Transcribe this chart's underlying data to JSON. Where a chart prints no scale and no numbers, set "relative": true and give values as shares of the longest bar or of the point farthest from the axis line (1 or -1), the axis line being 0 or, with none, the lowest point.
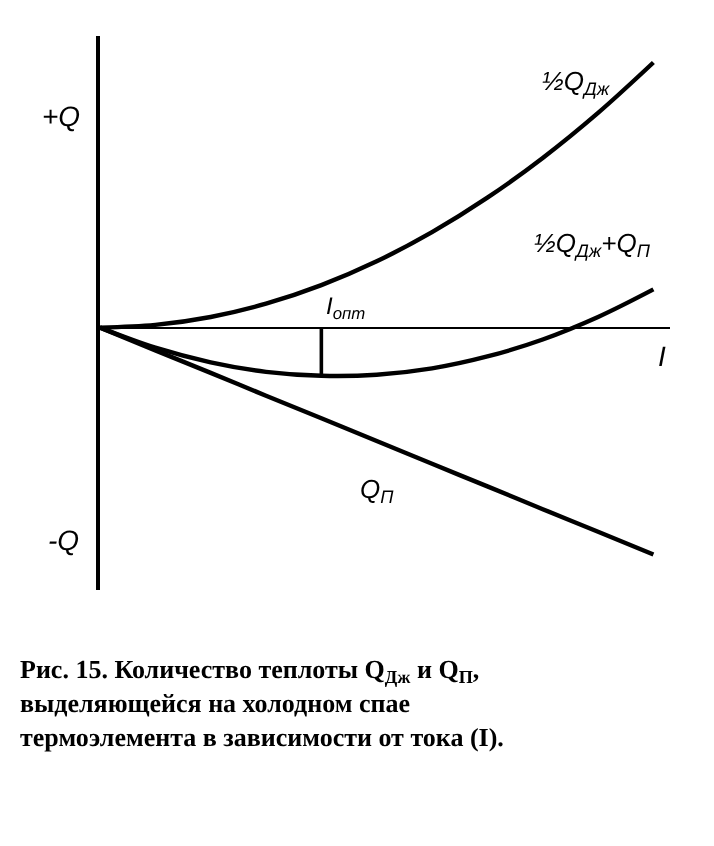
{
  "chart_data": {
    "type": "line",
    "relative": true,
    "xlabel": "I",
    "categories": [
      null,
      null,
      null,
      null,
      null,
      null,
      null,
      null,
      null,
      null,
      null
    ],
    "series": [
      {
        "name": "½Q$_{Дж}$",
        "color": "#000000",
        "values": [
          0,
          0.01,
          0.04,
          0.09,
          0.16,
          0.25,
          0.36,
          0.49,
          0.64,
          0.81,
          1
        ]
      },
      {
        "name": "½Q$_{Дж}$+Q$_{П}$",
        "color": "#000000",
        "values": [
          0,
          -0.076,
          -0.131,
          -0.167,
          -0.182,
          -0.178,
          -0.154,
          -0.109,
          -0.045,
          0.04,
          0.144
        ]
      },
      {
        "name": "Q$_{П}$",
        "color": "#000000",
        "values": [
          0,
          -0.086,
          -0.171,
          -0.257,
          -0.342,
          -0.428,
          -0.514,
          -0.599,
          -0.685,
          -0.77,
          -0.856
        ]
      }
    ],
    "annotations": [
      "+Q",
      "-Q",
      "I$_{опт}$",
      "Рис. 15. Количество теплоты Q$_{Дж}$ и Q$_{П}$, выделяющейся на холодном спае термоэлемента в зависимости от тока (I)."
    ],
    "legend": false,
    "marker": "none",
    "line_style": "solid"
  }
}
